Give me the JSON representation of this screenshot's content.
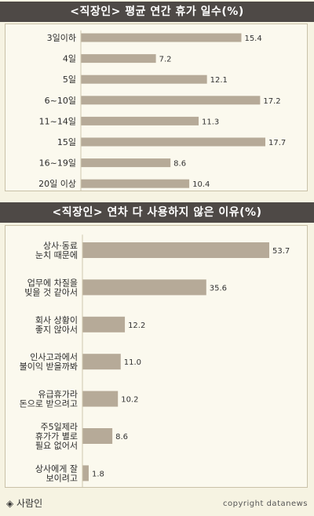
{
  "colors": {
    "bar": "#b6aa98",
    "title_bg": "#4e4946",
    "panel_bg": "#fbf9ee",
    "page_bg": "#f6f3e2"
  },
  "chart1": {
    "title": "<직장인> 평균 연간 휴가 일수(%)"
  },
  "chart2": {
    "title": "<직장인> 연차 다 사용하지 않은 이유(%)"
  },
  "footer": {
    "source": "◈ 사람인",
    "credit": "copyright datanews"
  },
  "chart_data": [
    {
      "type": "bar",
      "orientation": "horizontal",
      "title": "<직장인> 평균 연간 휴가 일수(%)",
      "categories": [
        [
          "3일이하"
        ],
        [
          "4일"
        ],
        [
          "5일"
        ],
        [
          "6~10일"
        ],
        [
          "11~14일"
        ],
        [
          "15일"
        ],
        [
          "16~19일"
        ],
        [
          "20일 이상"
        ]
      ],
      "values": [
        15.4,
        7.2,
        12.1,
        17.2,
        11.3,
        17.7,
        8.6,
        10.4
      ],
      "value_labels": [
        "15.4",
        "7.2",
        "12.1",
        "17.2",
        "11.3",
        "17.7",
        "8.6",
        "10.4"
      ],
      "xlim": [
        0,
        17.7
      ],
      "grid": false
    },
    {
      "type": "bar",
      "orientation": "horizontal",
      "title": "<직장인> 연차 다 사용하지 않은 이유(%)",
      "categories": [
        [
          "상사·동료",
          "눈치 때문에"
        ],
        [
          "업무에 차질을",
          "빚을 것 같아서"
        ],
        [
          "회사 상황이",
          "좋지 않아서"
        ],
        [
          "인사고과에서",
          "불이익 받을까봐"
        ],
        [
          "유급휴가라",
          "돈으로 받으려고"
        ],
        [
          "주5일제라",
          "휴가가 별로",
          "필요 없어서"
        ],
        [
          "상사에게 잘",
          "보이려고"
        ]
      ],
      "values": [
        53.7,
        35.6,
        12.2,
        11.0,
        10.2,
        8.6,
        1.8
      ],
      "value_labels": [
        "53.7",
        "35.6",
        "12.2",
        "11.0",
        "10.2",
        "8.6",
        "1.8"
      ],
      "xlim": [
        0,
        53.7
      ],
      "grid": false
    }
  ]
}
